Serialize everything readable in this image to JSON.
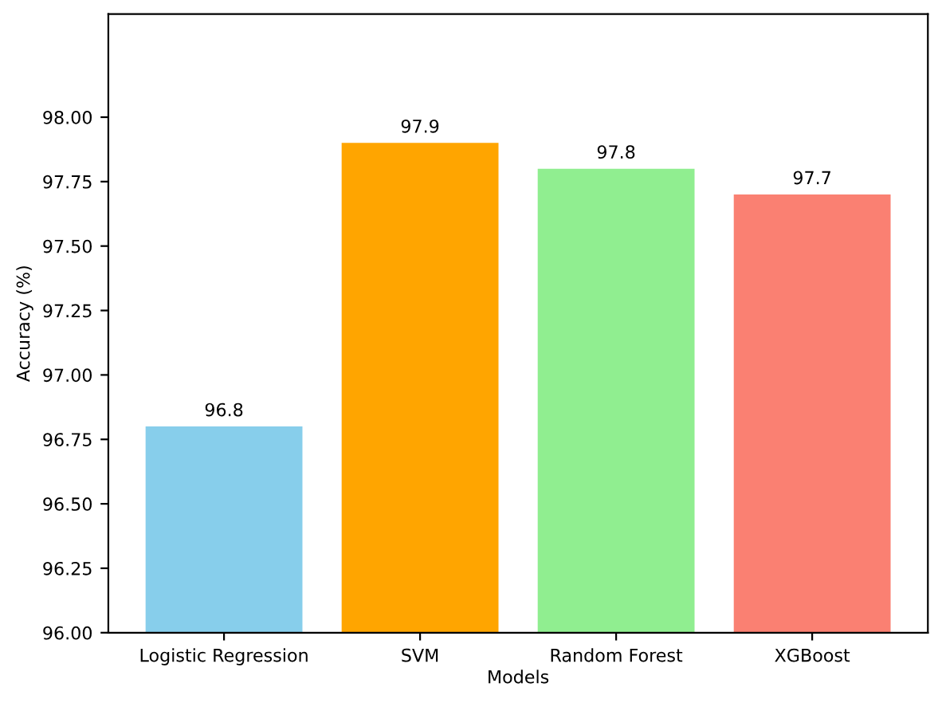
{
  "chart_data": {
    "type": "bar",
    "xlabel": "Models",
    "ylabel": "Accuracy (%)",
    "categories": [
      "Logistic Regression",
      "SVM",
      "Random Forest",
      "XGBoost"
    ],
    "values": [
      96.8,
      97.9,
      97.8,
      97.7
    ],
    "colors": [
      "#87ceeb",
      "#ffa500",
      "#90ee90",
      "#fa8072"
    ],
    "ylim": [
      96,
      98.4
    ],
    "yticks": [
      {
        "value": 96,
        "label": "96.00"
      },
      {
        "value": 96.25,
        "label": "96.25"
      },
      {
        "value": 96.5,
        "label": "96.50"
      },
      {
        "value": 96.75,
        "label": "96.75"
      },
      {
        "value": 97,
        "label": "97.00"
      },
      {
        "value": 97.25,
        "label": "97.25"
      },
      {
        "value": 97.5,
        "label": "97.50"
      },
      {
        "value": 97.75,
        "label": "97.75"
      },
      {
        "value": 98,
        "label": "98.00"
      }
    ],
    "data_labels": true
  }
}
